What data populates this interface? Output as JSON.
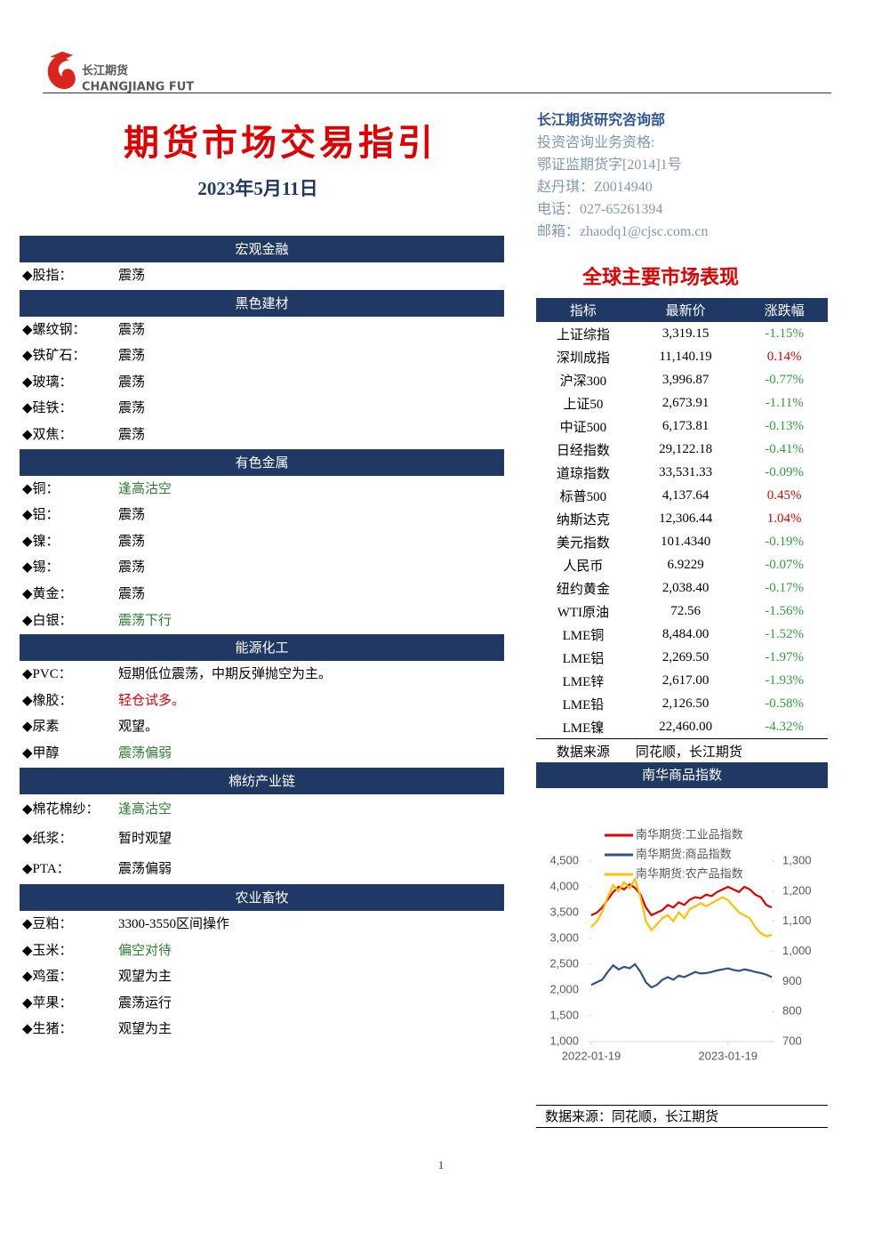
{
  "header": {
    "logo_cn": "长江期货",
    "logo_en": "CHANGJIANG FUTURES",
    "title": "期货市场交易指引",
    "date": "2023年5月11日"
  },
  "contact": [
    "长江期货研究咨询部",
    "投资咨询业务资格:",
    "鄂证监期货字[2014]1号",
    "赵丹琪：Z0014940",
    "电话：027-65261394",
    "邮箱：zhaodq1@cjsc.com.cn"
  ],
  "sections": [
    {
      "title": "宏观金融",
      "rows": [
        {
          "name": "股指：",
          "view": "震荡"
        }
      ]
    },
    {
      "title": "黑色建材",
      "rows": [
        {
          "name": "螺纹钢：",
          "view": "震荡"
        },
        {
          "name": "铁矿石：",
          "view": "震荡"
        },
        {
          "name": "玻璃：",
          "view": "震荡"
        },
        {
          "name": "硅铁：",
          "view": "震荡"
        },
        {
          "name": "双焦：",
          "view": "震荡"
        }
      ]
    },
    {
      "title": "有色金属",
      "rows": [
        {
          "name": "铜：",
          "view": "逢高沽空",
          "color": "#2e7d32"
        },
        {
          "name": "铝：",
          "view": "震荡"
        },
        {
          "name": "镍：",
          "view": "震荡"
        },
        {
          "name": "锡：",
          "view": "震荡"
        },
        {
          "name": "黄金：",
          "view": "震荡"
        },
        {
          "name": "白银：",
          "view": "震荡下行",
          "color": "#2e7d32"
        }
      ]
    },
    {
      "title": "能源化工",
      "rows": [
        {
          "name": "PVC：",
          "view": "短期低位震荡，中期反弹抛空为主。"
        },
        {
          "name": "橡胶：",
          "view": "轻仓试多。",
          "color": "#e00000"
        },
        {
          "name": "尿素",
          "view": "观望。"
        },
        {
          "name": "甲醇",
          "view": "震荡偏弱",
          "color": "#2e7d32"
        }
      ]
    },
    {
      "title": "棉纺产业链",
      "tall": true,
      "rows": [
        {
          "name": "棉花棉纱：",
          "view": "逢高沽空",
          "color": "#2e7d32"
        },
        {
          "name": "纸浆：",
          "view": "暂时观望"
        },
        {
          "name": "PTA：",
          "view": "震荡偏弱"
        }
      ]
    },
    {
      "title": "农业畜牧",
      "rows": [
        {
          "name": "豆粕：",
          "view": "3300-3550区间操作"
        },
        {
          "name": "玉米：",
          "view": "偏空对待",
          "color": "#2e7d32"
        },
        {
          "name": "鸡蛋：",
          "view": "观望为主"
        },
        {
          "name": "苹果：",
          "view": "震荡运行"
        },
        {
          "name": "生猪：",
          "view": "观望为主"
        }
      ]
    }
  ],
  "market": {
    "title": "全球主要市场表现",
    "columns": [
      "指标",
      "最新价",
      "涨跌幅"
    ],
    "rows": [
      [
        "上证综指",
        "3,319.15",
        "-1.15%"
      ],
      [
        "深圳成指",
        "11,140.19",
        "0.14%"
      ],
      [
        "沪深300",
        "3,996.87",
        "-0.77%"
      ],
      [
        "上证50",
        "2,673.91",
        "-1.11%"
      ],
      [
        "中证500",
        "6,173.81",
        "-0.13%"
      ],
      [
        "日经指数",
        "29,122.18",
        "-0.41%"
      ],
      [
        "道琼指数",
        "33,531.33",
        "-0.09%"
      ],
      [
        "标普500",
        "4,137.64",
        "0.45%"
      ],
      [
        "纳斯达克",
        "12,306.44",
        "1.04%"
      ],
      [
        "美元指数",
        "101.4340",
        "-0.19%"
      ],
      [
        "人民币",
        "6.9229",
        "-0.07%"
      ],
      [
        "纽约黄金",
        "2,038.40",
        "-0.17%"
      ],
      [
        "WTI原油",
        "72.56",
        "-1.56%"
      ],
      [
        "LME铜",
        "8,484.00",
        "-1.52%"
      ],
      [
        "LME铝",
        "2,269.50",
        "-1.97%"
      ],
      [
        "LME锌",
        "2,617.00",
        "-1.93%"
      ],
      [
        "LME铅",
        "2,126.50",
        "-0.58%"
      ],
      [
        "LME镍",
        "22,460.00",
        "-4.32%"
      ]
    ],
    "source": [
      "数据来源",
      "同花顺，长江期货"
    ]
  },
  "chart_data": {
    "type": "line",
    "title": "南华商品指数",
    "source": "数据来源：同花顺，长江期货",
    "categories": [
      "2022-01-19",
      null,
      null,
      null,
      null,
      null,
      null,
      null,
      null,
      null,
      null,
      null,
      null,
      null,
      null,
      null,
      null,
      null,
      null,
      null,
      null,
      null,
      null,
      null,
      null,
      "2023-01-19",
      null,
      null,
      null,
      null,
      null,
      null,
      null,
      null
    ],
    "ylim": [
      1000,
      4500
    ],
    "yticks": [
      {
        "value": 1000,
        "label": "1,000"
      },
      {
        "value": 1500,
        "label": "1,500"
      },
      {
        "value": 2000,
        "label": "2,000"
      },
      {
        "value": 2500,
        "label": "2,500"
      },
      {
        "value": 3000,
        "label": "3,000"
      },
      {
        "value": 3500,
        "label": "3,500"
      },
      {
        "value": 4000,
        "label": "4,000"
      },
      {
        "value": 4500,
        "label": "4,500"
      }
    ],
    "y2lim": [
      700,
      1300
    ],
    "y2ticks": [
      700,
      800,
      900,
      {
        "value": 1000,
        "label": "1,000"
      },
      {
        "value": 1100,
        "label": "1,100"
      },
      {
        "value": 1200,
        "label": "1,200"
      },
      {
        "value": 1300,
        "label": "1,300"
      }
    ],
    "series": [
      {
        "name": "南华期货:工业品指数",
        "color": "#e00000",
        "values": [
          3450,
          3500,
          3600,
          3750,
          3900,
          4000,
          3950,
          4050,
          3980,
          3850,
          3600,
          3450,
          3500,
          3550,
          3650,
          3600,
          3700,
          3650,
          3750,
          3800,
          3780,
          3850,
          3820,
          3900,
          3950,
          4000,
          3950,
          3900,
          4000,
          3950,
          3850,
          3800,
          3650,
          3600
        ]
      },
      {
        "name": "南华期货:商品指数",
        "color": "#2f528f",
        "values": [
          2100,
          2150,
          2200,
          2350,
          2480,
          2400,
          2450,
          2420,
          2500,
          2350,
          2150,
          2050,
          2100,
          2200,
          2250,
          2200,
          2280,
          2250,
          2300,
          2350,
          2320,
          2330,
          2350,
          2380,
          2400,
          2420,
          2390,
          2370,
          2400,
          2380,
          2350,
          2330,
          2300,
          2250
        ]
      },
      {
        "name": "南华期货:农产品指数",
        "color": "#ffc000",
        "axis": "y2",
        "values": [
          1080,
          1100,
          1130,
          1180,
          1220,
          1200,
          1230,
          1210,
          1240,
          1180,
          1100,
          1070,
          1090,
          1110,
          1120,
          1100,
          1130,
          1110,
          1140,
          1150,
          1160,
          1150,
          1160,
          1170,
          1180,
          1170,
          1150,
          1130,
          1120,
          1110,
          1080,
          1060,
          1050,
          1055
        ]
      }
    ]
  },
  "page_number": "1"
}
